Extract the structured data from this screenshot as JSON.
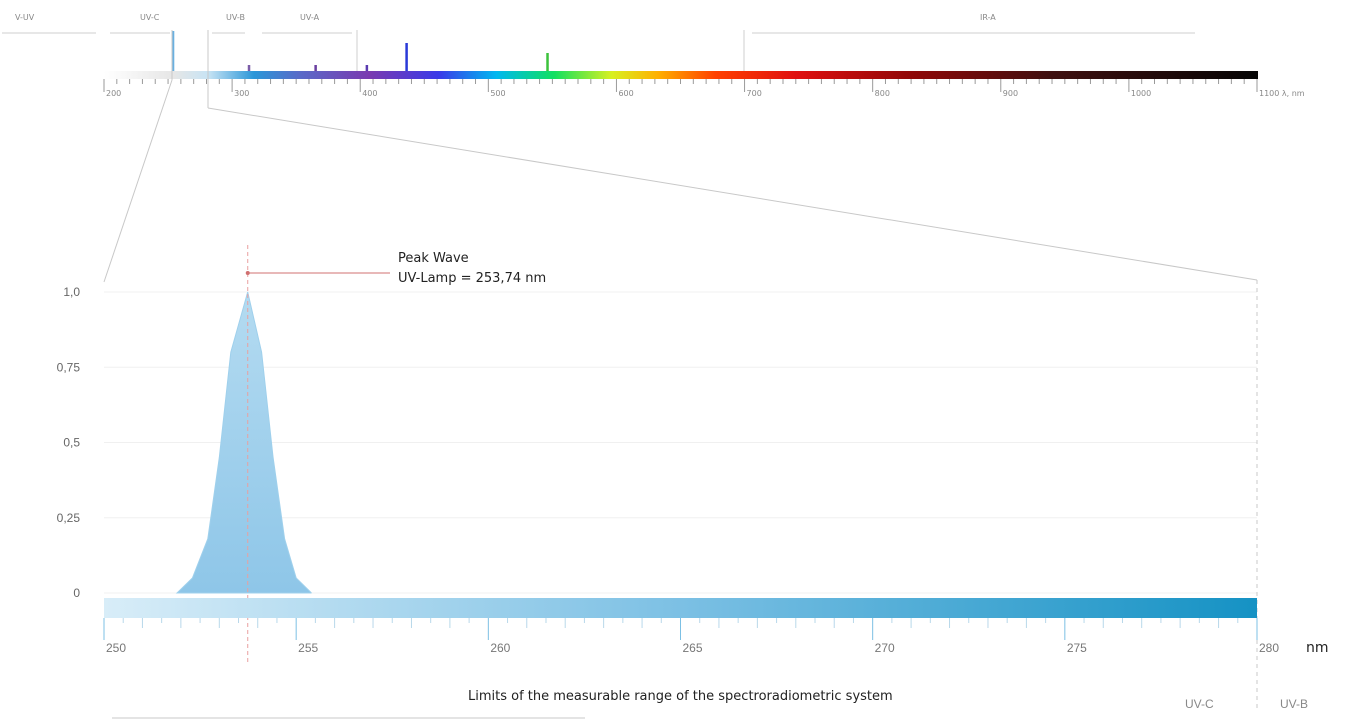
{
  "chart_data": {
    "type": "area",
    "overview": {
      "band_labels": [
        "V-UV",
        "UV-C",
        "UV-B",
        "UV-A",
        "IR-A"
      ],
      "tick_labels": [
        "200",
        "300",
        "400",
        "500",
        "600",
        "700",
        "800",
        "900",
        "1000",
        "1100 λ, nm"
      ],
      "ticks_nm": [
        200,
        300,
        400,
        500,
        600,
        700,
        800,
        900,
        1000,
        1100
      ],
      "marker_nm": [
        253.7,
        313,
        365,
        405,
        436,
        546
      ],
      "marker_colors": [
        "#6ab0e0",
        "#7b5ca8",
        "#6a3fa0",
        "#5a3bb0",
        "#2a3ad8",
        "#3cc23c"
      ],
      "range": [
        200,
        1100
      ]
    },
    "detail": {
      "x": [
        251.9,
        252.3,
        252.7,
        253.0,
        253.3,
        253.74,
        254.1,
        254.4,
        254.7,
        255.0,
        255.4
      ],
      "y": [
        0,
        0.05,
        0.18,
        0.45,
        0.8,
        1.0,
        0.8,
        0.45,
        0.18,
        0.05,
        0
      ],
      "xlim": [
        250,
        280
      ],
      "ylim": [
        0,
        1.0
      ],
      "y_ticks": [
        "0",
        "0,25",
        "0,5",
        "0,75",
        "1,0"
      ],
      "y_tick_values": [
        0,
        0.25,
        0.5,
        0.75,
        1.0
      ],
      "x_tick_labels": [
        "250",
        "255",
        "260",
        "265",
        "270",
        "275",
        "280"
      ],
      "x_tick_values": [
        250,
        255,
        260,
        265,
        270,
        275,
        280
      ],
      "x_unit": "nm",
      "peak_nm": 253.74,
      "annotation_line1": "Peak Wave",
      "annotation_line2": "UV-Lamp = 253,74 nm",
      "range_caption": "Limits of the measurable range of the spectroradiometric system",
      "band_right_1": "UV-C",
      "band_right_2": "UV-B"
    },
    "colors": {
      "peak_fill": "#9fd0ec",
      "bar_light": "#d8edf8",
      "bar_dark": "#1592c4",
      "guide": "#e8a0a0"
    }
  }
}
